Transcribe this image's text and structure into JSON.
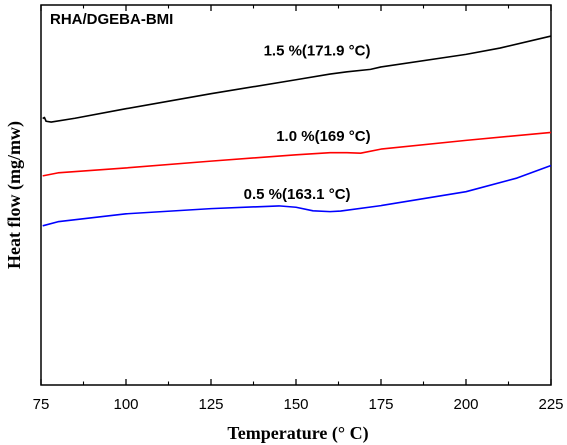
{
  "chart_data": {
    "type": "line",
    "title": "RHA/DGEBA-BMI",
    "xlabel": "Temperature (° C)",
    "ylabel": "Heat flow (mg/mw)",
    "xlim": [
      75,
      225
    ],
    "ylim": [
      0,
      100
    ],
    "x_ticks": [
      75,
      100,
      125,
      150,
      175,
      200,
      225
    ],
    "grid": false,
    "y_tick_labels": false,
    "series": [
      {
        "annotation": "1.5 %(171.9 °C)",
        "color": "#000000",
        "points": [
          [
            75.5,
            73.8
          ],
          [
            76,
            74.2
          ],
          [
            76.5,
            72.8
          ],
          [
            78,
            72.5
          ],
          [
            85,
            73.9
          ],
          [
            100,
            77.4
          ],
          [
            125,
            82.9
          ],
          [
            150,
            88.0
          ],
          [
            160,
            90.1
          ],
          [
            165,
            90.9
          ],
          [
            171.9,
            91.8
          ],
          [
            175,
            92.7
          ],
          [
            200,
            97.3
          ],
          [
            210,
            99.6
          ],
          [
            225,
            104.0
          ]
        ]
      },
      {
        "annotation": "1.0 %(169 °C)",
        "color": "#ff0000",
        "points": [
          [
            75.5,
            52.8
          ],
          [
            80,
            53.9
          ],
          [
            100,
            55.7
          ],
          [
            125,
            58.2
          ],
          [
            150,
            60.5
          ],
          [
            160,
            61.3
          ],
          [
            165,
            61.3
          ],
          [
            169,
            61.1
          ],
          [
            175,
            62.6
          ],
          [
            200,
            65.8
          ],
          [
            225,
            68.7
          ]
        ]
      },
      {
        "annotation": "0.5 %(163.1 °C)",
        "color": "#0000ff",
        "points": [
          [
            75.5,
            34.5
          ],
          [
            80,
            36.0
          ],
          [
            100,
            38.9
          ],
          [
            125,
            40.8
          ],
          [
            145,
            41.8
          ],
          [
            150,
            41.3
          ],
          [
            155,
            40.0
          ],
          [
            160,
            39.7
          ],
          [
            163.1,
            39.9
          ],
          [
            175,
            41.9
          ],
          [
            200,
            47.0
          ],
          [
            215,
            52.0
          ],
          [
            225,
            56.6
          ]
        ]
      }
    ]
  }
}
